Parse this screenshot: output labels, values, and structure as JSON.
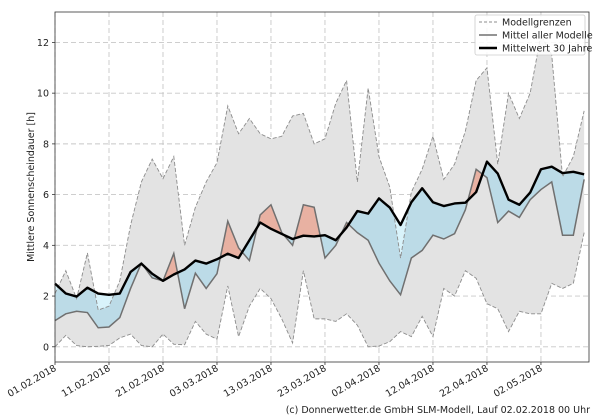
{
  "chart_data": {
    "type": "area",
    "title": "",
    "xlabel": "",
    "ylabel": "Mittlere Sonnenscheindauer [h]",
    "ylim": [
      -0.6,
      13.2
    ],
    "xlim": [
      "01.02.2018",
      "10.05.2018"
    ],
    "grid": true,
    "legend_position": "top-right",
    "yticks": [
      0,
      2,
      4,
      6,
      8,
      10,
      12
    ],
    "xticks": [
      "01.02.2018",
      "11.02.2018",
      "21.02.2018",
      "03.03.2018",
      "13.03.2018",
      "23.03.2018",
      "02.04.2018",
      "12.04.2018",
      "22.04.2018",
      "02.05.2018"
    ],
    "x": [
      "01.02.2018",
      "03.02.2018",
      "05.02.2018",
      "07.02.2018",
      "09.02.2018",
      "11.02.2018",
      "13.02.2018",
      "15.02.2018",
      "17.02.2018",
      "19.02.2018",
      "21.02.2018",
      "23.02.2018",
      "25.02.2018",
      "27.02.2018",
      "01.03.2018",
      "03.03.2018",
      "05.03.2018",
      "07.03.2018",
      "09.03.2018",
      "11.03.2018",
      "13.03.2018",
      "15.03.2018",
      "17.03.2018",
      "19.03.2018",
      "21.03.2018",
      "23.03.2018",
      "25.03.2018",
      "27.03.2018",
      "29.03.2018",
      "31.03.2018",
      "02.04.2018",
      "04.04.2018",
      "06.04.2018",
      "08.04.2018",
      "10.04.2018",
      "12.04.2018",
      "14.04.2018",
      "16.04.2018",
      "18.04.2018",
      "20.04.2018",
      "22.04.2018",
      "24.04.2018",
      "26.04.2018",
      "28.04.2018",
      "30.04.2018",
      "02.05.2018",
      "04.05.2018",
      "06.05.2018",
      "08.05.2018",
      "10.05.2018"
    ],
    "series": [
      {
        "name": "Modellgrenzen",
        "role": "upper",
        "values": [
          2.1,
          3.0,
          1.9,
          3.7,
          1.45,
          1.6,
          2.6,
          4.8,
          6.5,
          7.4,
          6.63,
          7.5,
          4.0,
          5.5,
          6.5,
          7.26,
          9.5,
          8.4,
          9.0,
          8.4,
          8.2,
          8.3,
          9.1,
          9.2,
          8.0,
          8.2,
          9.6,
          10.5,
          6.5,
          10.2,
          7.5,
          6.3,
          3.5,
          6.1,
          7.0,
          8.3,
          6.6,
          7.2,
          8.5,
          10.5,
          11.0,
          7.2,
          10.0,
          9.0,
          10.0,
          12.3,
          11.5,
          6.7,
          7.5,
          9.3
        ]
      },
      {
        "name": "Modellgrenzen",
        "role": "lower",
        "values": [
          0.0,
          0.45,
          0.05,
          0.0,
          0.02,
          0.05,
          0.35,
          0.5,
          0.05,
          0.0,
          0.5,
          0.1,
          0.08,
          1.0,
          0.5,
          0.3,
          2.4,
          0.4,
          1.6,
          2.3,
          1.9,
          1.1,
          0.15,
          3.0,
          1.1,
          1.1,
          1.0,
          1.3,
          0.85,
          0.0,
          0.03,
          0.2,
          0.6,
          0.4,
          1.2,
          0.4,
          2.3,
          2.0,
          3.0,
          2.7,
          1.7,
          1.5,
          0.6,
          1.4,
          1.3,
          1.3,
          2.5,
          2.3,
          2.5,
          4.5
        ]
      },
      {
        "name": "Mittel aller Modelle",
        "role": "mean",
        "values": [
          1.03,
          1.3,
          1.4,
          1.35,
          0.75,
          0.78,
          1.15,
          2.3,
          3.3,
          2.72,
          2.6,
          3.68,
          1.5,
          2.9,
          2.3,
          2.88,
          4.95,
          3.9,
          3.4,
          5.2,
          5.6,
          4.5,
          4.0,
          5.6,
          5.5,
          3.5,
          4.0,
          4.9,
          4.5,
          4.2,
          3.3,
          2.6,
          2.05,
          3.5,
          3.8,
          4.4,
          4.25,
          4.46,
          5.4,
          7.0,
          6.67,
          4.9,
          5.35,
          5.1,
          5.8,
          6.2,
          6.5,
          4.4,
          4.4,
          6.6
        ]
      },
      {
        "name": "Mittelwert 30 Jahre",
        "role": "climate",
        "values": [
          2.49,
          2.1,
          1.98,
          2.33,
          2.1,
          2.05,
          2.1,
          2.95,
          3.28,
          2.88,
          2.6,
          2.85,
          3.05,
          3.4,
          3.28,
          3.45,
          3.67,
          3.5,
          4.2,
          4.9,
          4.65,
          4.45,
          4.25,
          4.38,
          4.35,
          4.4,
          4.2,
          4.7,
          5.35,
          5.25,
          5.85,
          5.49,
          4.8,
          5.7,
          6.25,
          5.7,
          5.55,
          5.65,
          5.68,
          6.1,
          7.3,
          6.83,
          5.8,
          5.6,
          6.08,
          7.0,
          7.1,
          6.85,
          6.9,
          6.8
        ]
      }
    ],
    "colors": {
      "range_fill": "#e3e3e3",
      "range_line": "#8c8c8c",
      "mean_line": "#707070",
      "climate_line": "#000000",
      "above_fill": "#e8b1a2",
      "below_fill": "#bcdbe7",
      "range_below_fill": "#d9f3fb"
    }
  },
  "legend": {
    "items": [
      "Modellgrenzen",
      "Mittel aller Modelle",
      "Mittelwert 30 Jahre"
    ]
  },
  "footer": "(c) Donnerwetter.de GmbH SLM-Modell, Lauf 02.02.2018 00 Uhr"
}
